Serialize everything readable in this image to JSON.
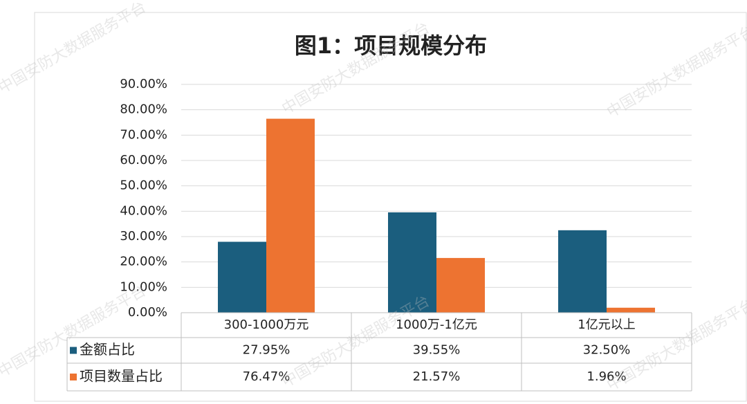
{
  "chart_data": {
    "type": "bar",
    "title": "图1：项目规模分布",
    "watermark": "中国安防大数据服务平台",
    "categories": [
      "300-1000万元",
      "1000万-1亿元",
      "1亿元以上"
    ],
    "series": [
      {
        "name": "金额占比",
        "color": "#1b5e7e",
        "values": [
          27.95,
          39.55,
          32.5
        ],
        "value_labels": [
          "27.95%",
          "39.55%",
          "32.50%"
        ]
      },
      {
        "name": "项目数量占比",
        "color": "#ed7331",
        "values": [
          76.47,
          21.57,
          1.96
        ],
        "value_labels": [
          "76.47%",
          "21.57%",
          "1.96%"
        ]
      }
    ],
    "ylim": [
      0,
      90
    ],
    "yticks": [
      {
        "value": 0,
        "label": "0.00%"
      },
      {
        "value": 10,
        "label": "10.00%"
      },
      {
        "value": 20,
        "label": "20.00%"
      },
      {
        "value": 30,
        "label": "30.00%"
      },
      {
        "value": 40,
        "label": "40.00%"
      },
      {
        "value": 50,
        "label": "50.00%"
      },
      {
        "value": 60,
        "label": "60.00%"
      },
      {
        "value": 70,
        "label": "70.00%"
      },
      {
        "value": 80,
        "label": "80.00%"
      },
      {
        "value": 90,
        "label": "90.00%"
      }
    ],
    "grid": true
  }
}
